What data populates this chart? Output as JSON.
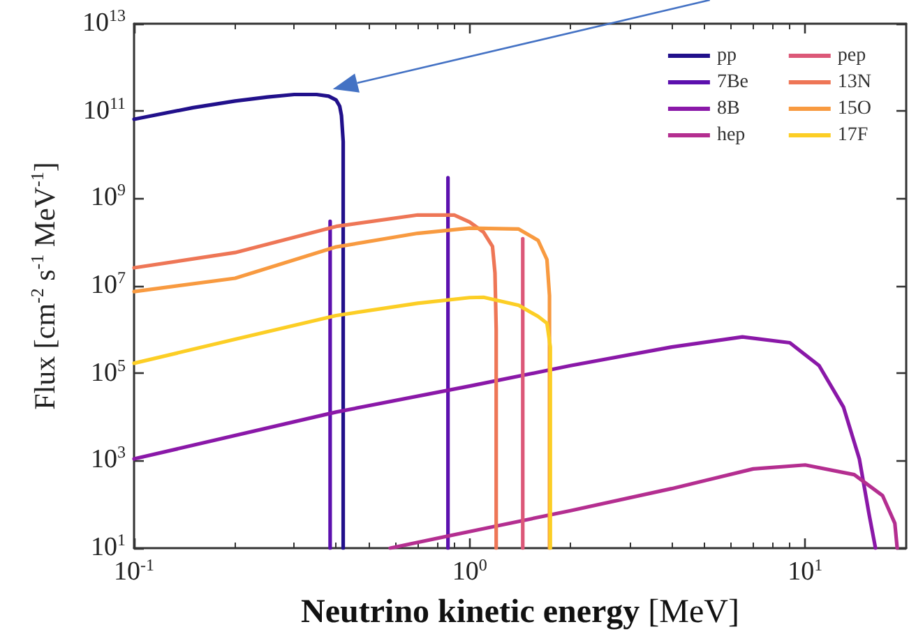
{
  "chart_data": {
    "type": "line",
    "xlabel": "Neutrino kinetic energy [MeV]",
    "ylabel": "Flux [cm$^{-2}$ s$^{-1}$ MeV$^{-1}$]",
    "log": "xy",
    "grid": false,
    "legend": "top right",
    "marker": "none",
    "line_style": "solid",
    "xlim": [
      0.1,
      20
    ],
    "ylim": [
      10,
      10000000000000.0
    ],
    "xticks": [
      {
        "value": 0.1,
        "label": "10$^{-1}$"
      },
      {
        "value": 1,
        "label": "10$^{0}$"
      },
      {
        "value": 10,
        "label": "10$^{1}$"
      }
    ],
    "yticks": [
      {
        "value": 10,
        "label": "10$^{1}$"
      },
      {
        "value": 1000,
        "label": "10$^{3}$"
      },
      {
        "value": 100000,
        "label": "10$^{5}$"
      },
      {
        "value": 10000000,
        "label": "10$^{7}$"
      },
      {
        "value": 1000000000,
        "label": "10$^{9}$"
      },
      {
        "value": 100000000000,
        "label": "10$^{11}$"
      },
      {
        "value": 10000000000000,
        "label": "10$^{13}$"
      }
    ],
    "series": [
      {
        "name": "pp",
        "color": "#21108b",
        "x": [
          0.1,
          0.15,
          0.2,
          0.25,
          0.3,
          0.35,
          0.38,
          0.4,
          0.41,
          0.415,
          0.42,
          0.42
        ],
        "values": [
          65000000000.0,
          120000000000.0,
          170000000000.0,
          210000000000.0,
          240000000000.0,
          240000000000.0,
          220000000000.0,
          180000000000.0,
          130000000000.0,
          80000000000.0,
          20000000000.0,
          10
        ]
      },
      {
        "name": "7Be",
        "color": "#5c10ae",
        "x": [
          0.384,
          0.384,
          null,
          0.862,
          0.862
        ],
        "values": [
          10,
          300000000.0,
          null,
          10,
          3000000000.0
        ]
      },
      {
        "name": "8B",
        "color": "#8a18a8",
        "x": [
          0.1,
          0.4,
          1,
          2,
          4,
          6.5,
          9,
          11,
          13,
          14.5,
          15.5,
          16.2
        ],
        "values": [
          1100,
          13000,
          51000,
          150000,
          400000,
          680000,
          500000,
          150000,
          17000,
          1100,
          60,
          10
        ]
      },
      {
        "name": "hep",
        "color": "#b42e90",
        "x": [
          0.58,
          1,
          2,
          4,
          7,
          10,
          14,
          17,
          18.5,
          18.8
        ],
        "values": [
          10,
          24,
          72,
          230,
          650,
          800,
          480,
          160,
          37,
          10
        ]
      },
      {
        "name": "pep",
        "color": "#dc5878",
        "x": [
          1.44,
          1.44
        ],
        "values": [
          10,
          120000000.0
        ]
      },
      {
        "name": "13N",
        "color": "#ee7656",
        "x": [
          0.1,
          0.2,
          0.4,
          0.7,
          0.9,
          1.0,
          1.1,
          1.17,
          1.19,
          1.2,
          1.2
        ],
        "values": [
          26000000.0,
          58000000.0,
          230000000.0,
          420000000.0,
          420000000.0,
          290000000.0,
          170000000.0,
          80000000.0,
          20000000.0,
          1000000.0,
          10
        ]
      },
      {
        "name": "15O",
        "color": "#f89a40",
        "x": [
          0.1,
          0.2,
          0.4,
          0.7,
          1.0,
          1.4,
          1.6,
          1.7,
          1.73,
          1.73
        ],
        "values": [
          7400000.0,
          15000000.0,
          78000000.0,
          160000000.0,
          210000000.0,
          200000000.0,
          110000000.0,
          40000000.0,
          6000000.0,
          10
        ]
      },
      {
        "name": "17F",
        "color": "#fcce25",
        "x": [
          0.1,
          0.2,
          0.4,
          0.7,
          1.0,
          1.1,
          1.4,
          1.6,
          1.7,
          1.74,
          1.74
        ],
        "values": [
          170000,
          600000,
          2100000,
          4000000,
          5400000,
          5500000,
          3600000,
          2000000,
          1400000,
          400000,
          10
        ]
      }
    ]
  }
}
